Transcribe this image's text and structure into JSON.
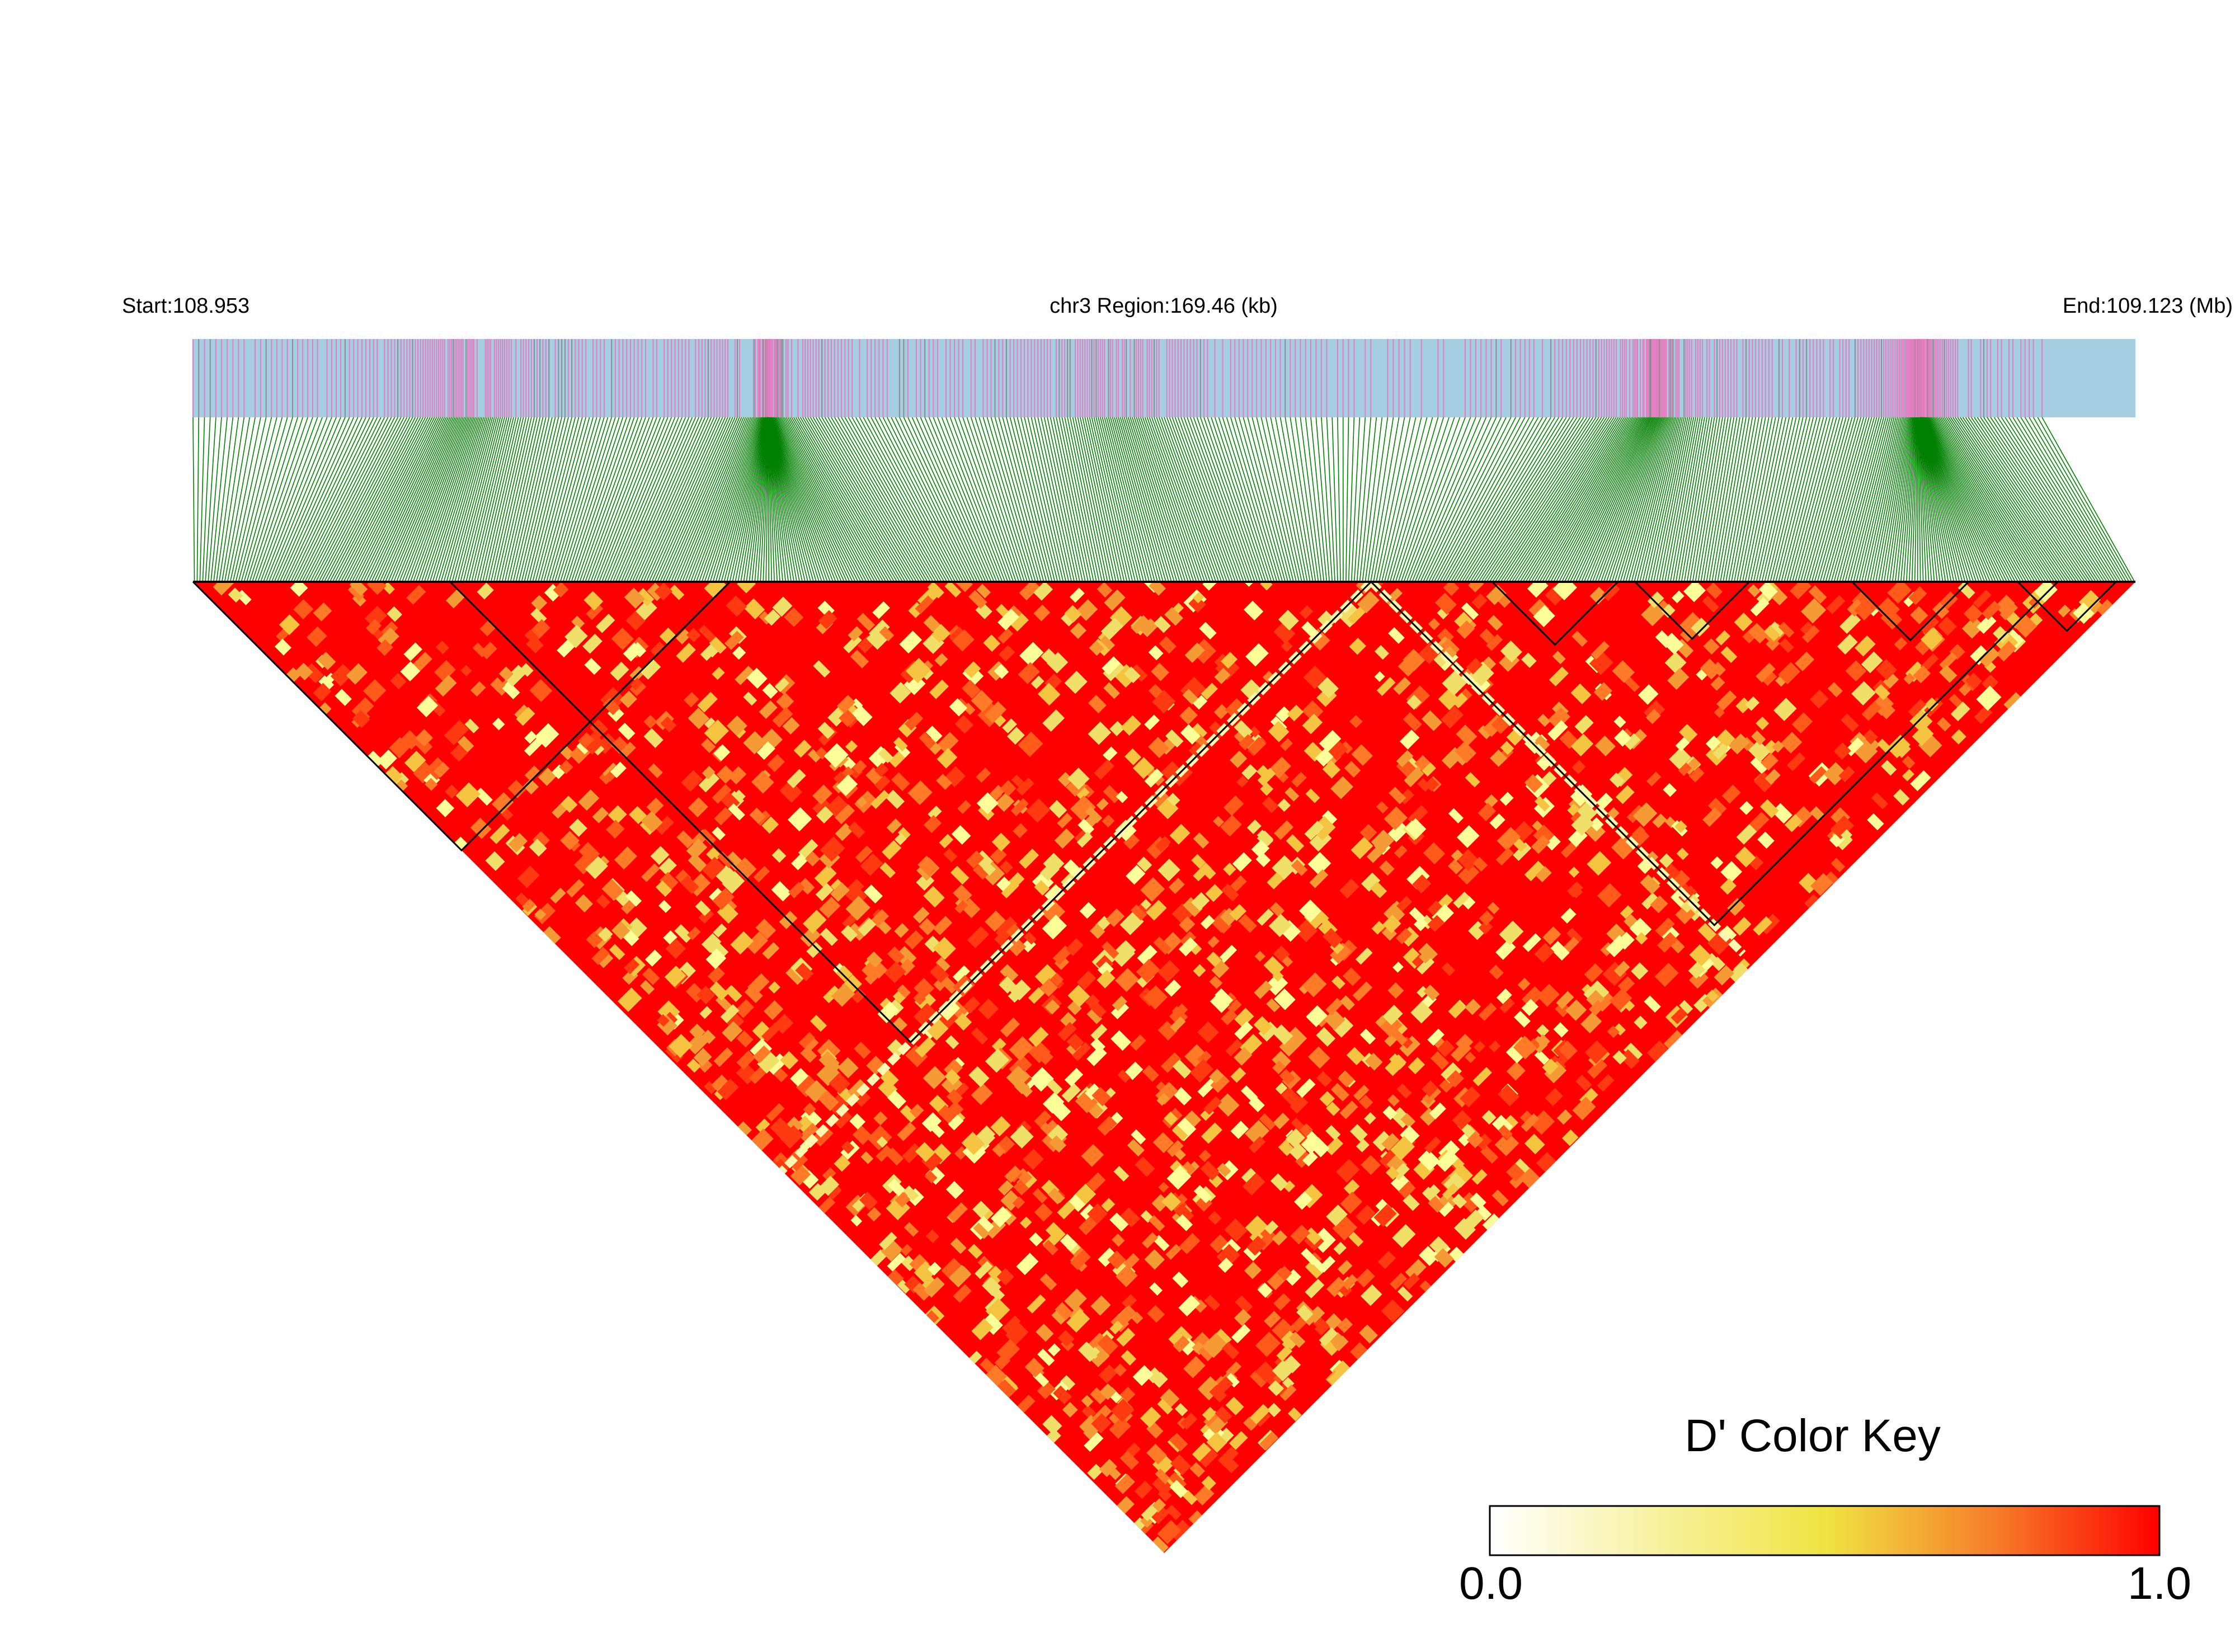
{
  "chart_data": {
    "type": "heatmap",
    "subtype": "linkage-disequilibrium-triangle",
    "region": {
      "start_label": "Start:108.953",
      "region_label": "chr3 Region:169.46 (kb)",
      "end_label": "End:109.123 (Mb)",
      "chromosome": "chr3",
      "start_mb": 108.953,
      "end_mb": 109.123,
      "length_kb": 169.46
    },
    "metric": "D'",
    "color_key": {
      "title": "D' Color Key",
      "min_label": "0.0",
      "max_label": "1.0",
      "range": [
        0,
        1
      ],
      "stops": [
        "#ffffff",
        "#f0e442",
        "#ff0000"
      ]
    },
    "colors": {
      "track_background": "#a6cee3",
      "snp_tick": "#e27fc0",
      "snp_tick_dark": "#8c8c8c",
      "connector_lines": "#008000",
      "high_ld": "#ff0000",
      "block_outline": "#000000"
    },
    "haplotype_blocks_mb": [
      [
        108.953,
        109.0
      ],
      [
        108.9755,
        109.0561
      ],
      [
        109.0561,
        109.1162
      ],
      [
        109.0667,
        109.0777
      ],
      [
        109.0792,
        109.0892
      ],
      [
        109.0982,
        109.1084
      ],
      [
        109.1127,
        109.1213
      ]
    ]
  }
}
